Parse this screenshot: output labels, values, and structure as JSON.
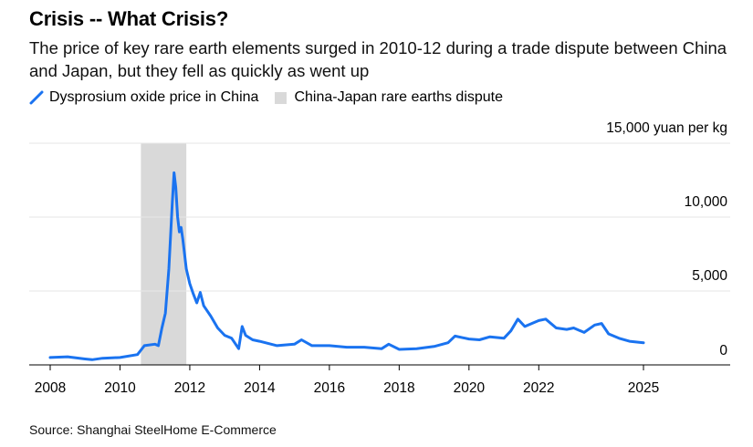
{
  "header": {
    "title": "Crisis -- What Crisis?",
    "subtitle": "The price of key rare earth elements surged in 2010-12 during a trade dispute between China and Japan, but they fell as quickly as went up"
  },
  "legend": {
    "series_label": "Dysprosium oxide price in China",
    "band_label": "China-Japan rare earths dispute"
  },
  "footer": {
    "source": "Source: Shanghai SteelHome E-Commerce"
  },
  "colors": {
    "line": "#1a73f0",
    "band": "#d9d9d9",
    "grid": "#e6e6e6",
    "axis": "#000000"
  },
  "chart_data": {
    "type": "line",
    "title": "Crisis -- What Crisis?",
    "ylabel": "15,000 yuan per kg",
    "ylim": [
      0,
      15000
    ],
    "xlim": [
      2008,
      2026
    ],
    "grid": true,
    "legend_position": "top-left",
    "x_ticks": [
      2008,
      2010,
      2012,
      2014,
      2016,
      2018,
      2020,
      2022,
      2025
    ],
    "y_ticks": [
      0,
      5000,
      10000,
      15000
    ],
    "y_tick_labels": [
      "0",
      "5,000",
      "10,000",
      "15,000 yuan per kg"
    ],
    "band": {
      "name": "China-Japan rare earths dispute",
      "x_start": 2010.6,
      "x_end": 2011.9
    },
    "series": [
      {
        "name": "Dysprosium oxide price in China",
        "x": [
          2008.0,
          2008.5,
          2009.0,
          2009.2,
          2009.5,
          2010.0,
          2010.5,
          2010.7,
          2011.0,
          2011.1,
          2011.2,
          2011.3,
          2011.4,
          2011.5,
          2011.55,
          2011.6,
          2011.65,
          2011.7,
          2011.75,
          2011.8,
          2011.9,
          2012.0,
          2012.1,
          2012.2,
          2012.3,
          2012.4,
          2012.6,
          2012.8,
          2013.0,
          2013.2,
          2013.4,
          2013.5,
          2013.6,
          2013.8,
          2014.0,
          2014.5,
          2015.0,
          2015.2,
          2015.5,
          2016.0,
          2016.5,
          2017.0,
          2017.5,
          2017.7,
          2018.0,
          2018.5,
          2019.0,
          2019.4,
          2019.6,
          2020.0,
          2020.3,
          2020.6,
          2021.0,
          2021.2,
          2021.4,
          2021.6,
          2021.8,
          2022.0,
          2022.2,
          2022.5,
          2022.8,
          2023.0,
          2023.3,
          2023.6,
          2023.8,
          2024.0,
          2024.3,
          2024.6,
          2025.0
        ],
        "values": [
          500,
          550,
          400,
          350,
          450,
          500,
          700,
          1300,
          1400,
          1300,
          2500,
          3500,
          6500,
          11000,
          13000,
          12000,
          10000,
          9000,
          9300,
          8500,
          6500,
          5500,
          4800,
          4200,
          4900,
          4000,
          3300,
          2500,
          2000,
          1800,
          1100,
          2600,
          2000,
          1700,
          1600,
          1300,
          1400,
          1700,
          1300,
          1300,
          1200,
          1200,
          1100,
          1400,
          1050,
          1100,
          1250,
          1500,
          1950,
          1750,
          1700,
          1900,
          1800,
          2300,
          3100,
          2600,
          2800,
          3000,
          3100,
          2500,
          2400,
          2500,
          2200,
          2700,
          2800,
          2100,
          1800,
          1600,
          1500
        ]
      }
    ]
  }
}
